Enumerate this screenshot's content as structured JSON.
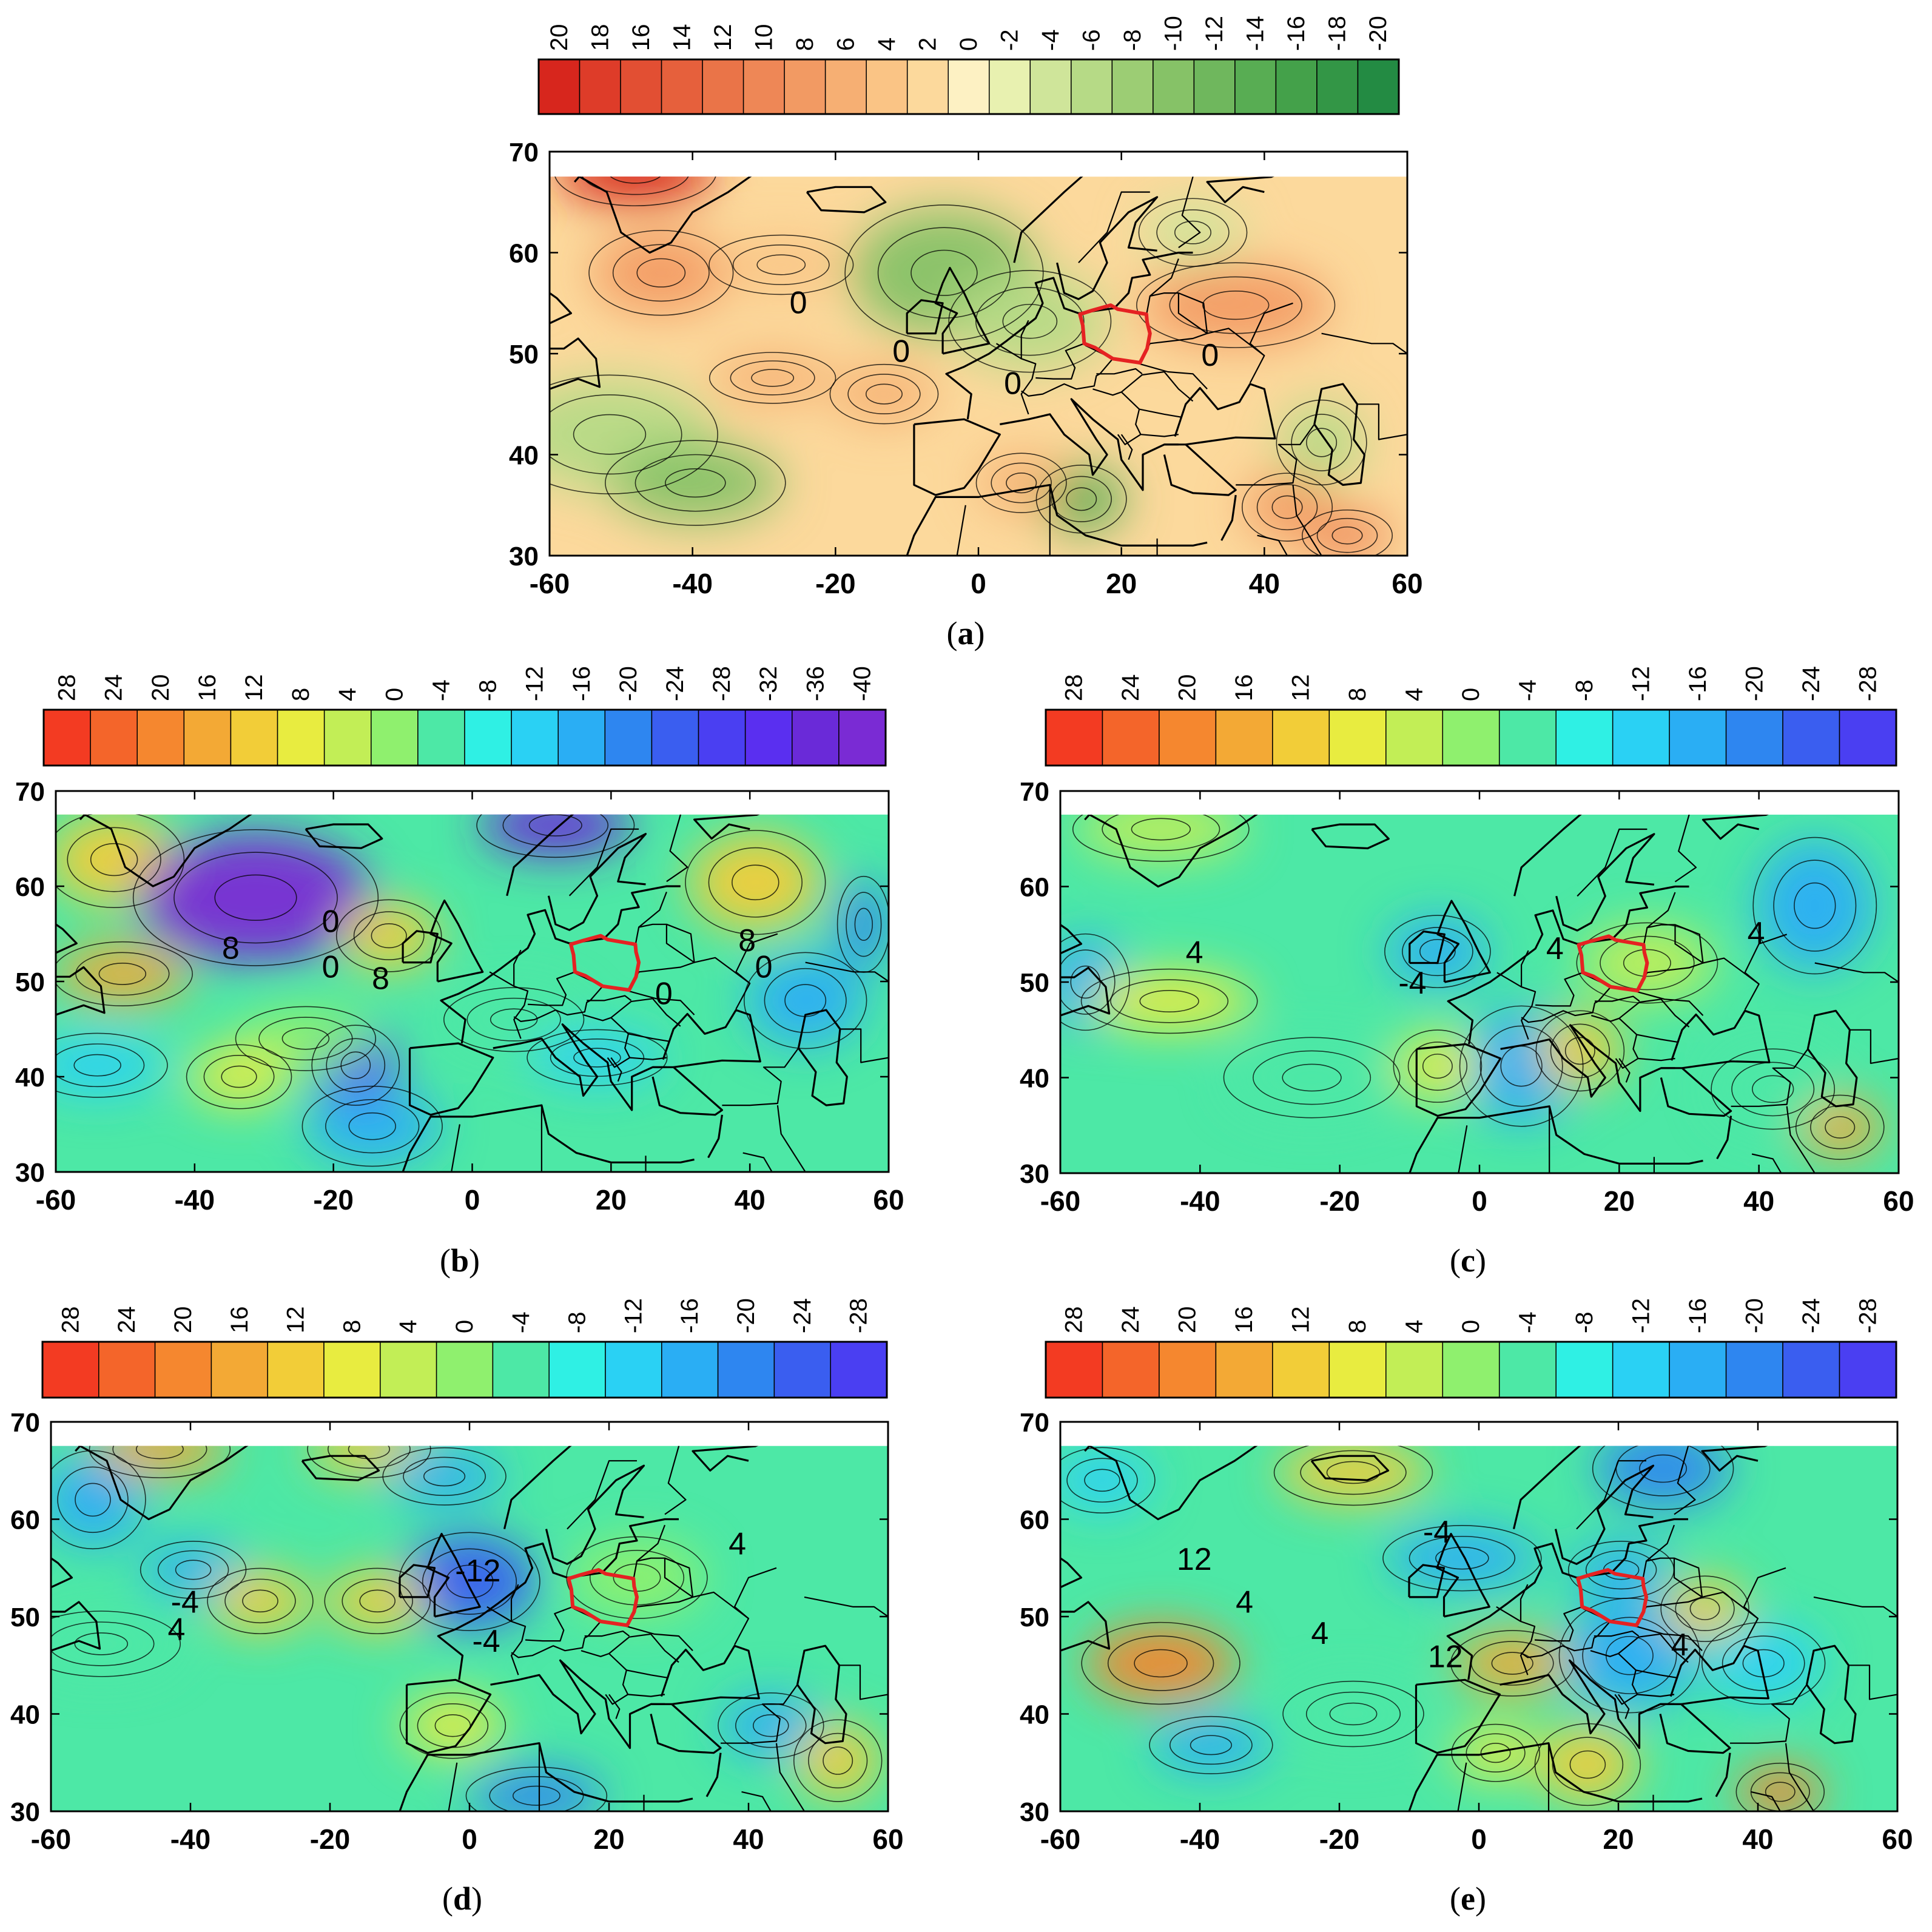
{
  "figure": {
    "panels": [
      {
        "id": "a",
        "caption_letter": "a",
        "colorbar_labels": [
          "20",
          "18",
          "16",
          "14",
          "12",
          "10",
          "8",
          "6",
          "4",
          "2",
          "0",
          "-2",
          "-4",
          "-6",
          "-8",
          "-10",
          "-12",
          "-14",
          "-16",
          "-18",
          "-20"
        ],
        "colorbar_colors": [
          "#d7261d",
          "#de3c29",
          "#e24f33",
          "#e6603c",
          "#ea7448",
          "#ee8756",
          "#f29a63",
          "#f6af73",
          "#fac485",
          "#fcd99c",
          "#fdf1c3",
          "#e8f1b0",
          "#cfe59a",
          "#b6da86",
          "#9ccd74",
          "#86c267",
          "#6fb75d",
          "#58ad53",
          "#44a14a",
          "#339646",
          "#238b43"
        ],
        "x_ticks": [
          "-60",
          "-40",
          "-20",
          "0",
          "20",
          "40",
          "60"
        ],
        "y_ticks": [
          "70",
          "60",
          "50",
          "40",
          "30"
        ],
        "contour_labels": [
          "0",
          "0",
          "0",
          "0"
        ],
        "region_outline": "#e52222"
      },
      {
        "id": "b",
        "caption_letter": "b",
        "colorbar_labels": [
          "28",
          "24",
          "20",
          "16",
          "12",
          "8",
          "4",
          "0",
          "-4",
          "-8",
          "-12",
          "-16",
          "-20",
          "-24",
          "-28",
          "-32",
          "-36",
          "-40"
        ],
        "colorbar_colors": [
          "#f33b22",
          "#f4652a",
          "#f5872f",
          "#f3a935",
          "#f2cd38",
          "#e8ec40",
          "#c2ee56",
          "#8ff06e",
          "#4de8a6",
          "#2ff0e4",
          "#2ad1f4",
          "#2aaef4",
          "#2e86f0",
          "#3a5ef0",
          "#4a3ff2",
          "#5a2ff0",
          "#6a2ad8",
          "#7a2bd4"
        ],
        "x_ticks": [
          "-60",
          "-40",
          "-20",
          "0",
          "20",
          "40",
          "60"
        ],
        "y_ticks": [
          "70",
          "60",
          "50",
          "40",
          "30"
        ],
        "contour_labels": [
          "8",
          "0",
          "0",
          "8",
          "8",
          "0",
          "0"
        ],
        "region_outline": "#e52222"
      },
      {
        "id": "c",
        "caption_letter": "c",
        "colorbar_labels": [
          "28",
          "24",
          "20",
          "16",
          "12",
          "8",
          "4",
          "0",
          "-4",
          "-8",
          "-12",
          "-16",
          "-20",
          "-24",
          "-28"
        ],
        "colorbar_colors": [
          "#f33b22",
          "#f4652a",
          "#f5872f",
          "#f3a935",
          "#f2cd38",
          "#e8ec40",
          "#c2ee56",
          "#8ff06e",
          "#4de8a6",
          "#2ff0e4",
          "#2ad1f4",
          "#2aaef4",
          "#2e86f0",
          "#3a5ef0",
          "#4a3ff2"
        ],
        "x_ticks": [
          "-60",
          "-40",
          "-20",
          "0",
          "20",
          "40",
          "60"
        ],
        "y_ticks": [
          "70",
          "60",
          "50",
          "40",
          "30"
        ],
        "contour_labels": [
          "4",
          "-4",
          "4",
          "4"
        ],
        "region_outline": "#e52222"
      },
      {
        "id": "d",
        "caption_letter": "d",
        "colorbar_labels": [
          "28",
          "24",
          "20",
          "16",
          "12",
          "8",
          "4",
          "0",
          "-4",
          "-8",
          "-12",
          "-16",
          "-20",
          "-24",
          "-28"
        ],
        "colorbar_colors": [
          "#f33b22",
          "#f4652a",
          "#f5872f",
          "#f3a935",
          "#f2cd38",
          "#e8ec40",
          "#c2ee56",
          "#8ff06e",
          "#4de8a6",
          "#2ff0e4",
          "#2ad1f4",
          "#2aaef4",
          "#2e86f0",
          "#3a5ef0",
          "#4a3ff2"
        ],
        "x_ticks": [
          "-60",
          "-40",
          "-20",
          "0",
          "20",
          "40",
          "60"
        ],
        "y_ticks": [
          "70",
          "60",
          "50",
          "40",
          "30"
        ],
        "contour_labels": [
          "-4",
          "4",
          "-12",
          "-4",
          "4"
        ],
        "region_outline": "#e52222"
      },
      {
        "id": "e",
        "caption_letter": "e",
        "colorbar_labels": [
          "28",
          "24",
          "20",
          "16",
          "12",
          "8",
          "4",
          "0",
          "-4",
          "-8",
          "-12",
          "-16",
          "-20",
          "-24",
          "-28"
        ],
        "colorbar_colors": [
          "#f33b22",
          "#f4652a",
          "#f5872f",
          "#f3a935",
          "#f2cd38",
          "#e8ec40",
          "#c2ee56",
          "#8ff06e",
          "#4de8a6",
          "#2ff0e4",
          "#2ad1f4",
          "#2aaef4",
          "#2e86f0",
          "#3a5ef0",
          "#4a3ff2"
        ],
        "x_ticks": [
          "-60",
          "-40",
          "-20",
          "0",
          "20",
          "40",
          "60"
        ],
        "y_ticks": [
          "70",
          "60",
          "50",
          "40",
          "30"
        ],
        "contour_labels": [
          "12",
          "4",
          "-4",
          "4",
          "12",
          "4"
        ],
        "region_outline": "#e52222"
      }
    ]
  }
}
